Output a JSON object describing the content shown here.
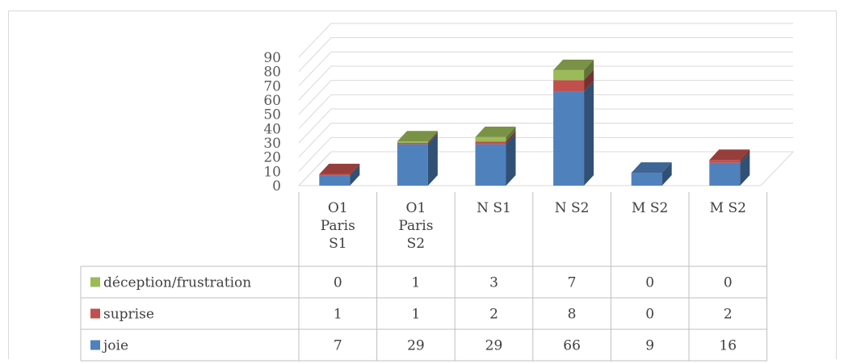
{
  "chart_data": {
    "type": "bar",
    "stacked": true,
    "three_d": true,
    "categories": [
      "O1 Paris S1",
      "O1 Paris S2",
      "N S1",
      "N S2",
      "M S2",
      "M S2"
    ],
    "category_lines": [
      [
        "O1",
        "Paris",
        "S1"
      ],
      [
        "O1",
        "Paris",
        "S2"
      ],
      [
        "N S1"
      ],
      [
        "N S2"
      ],
      [
        "M S2"
      ],
      [
        "M S2"
      ]
    ],
    "series": [
      {
        "name": "joie",
        "color": "#4f81bd",
        "values": [
          7,
          29,
          29,
          66,
          9,
          16
        ]
      },
      {
        "name": "suprise",
        "color": "#c0504d",
        "values": [
          1,
          1,
          2,
          8,
          0,
          2
        ]
      },
      {
        "name": "déception/frustration",
        "color": "#9bbb59",
        "values": [
          0,
          1,
          3,
          7,
          0,
          0
        ]
      }
    ],
    "y_ticks": [
      "0",
      "10",
      "20",
      "30",
      "40",
      "50",
      "60",
      "70",
      "80",
      "90"
    ],
    "ylim": [
      0,
      90
    ],
    "grid": true,
    "legend": "data-table"
  }
}
